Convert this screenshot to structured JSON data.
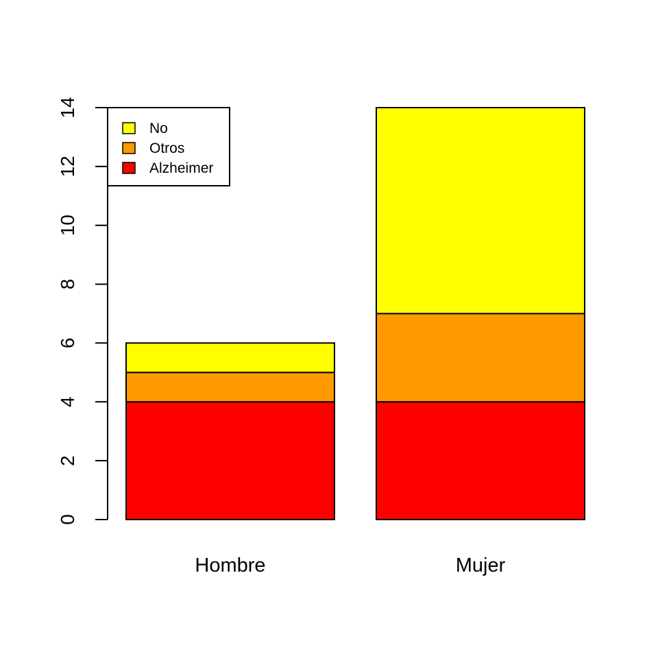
{
  "chart_data": {
    "type": "bar",
    "stacked": true,
    "categories": [
      "Hombre",
      "Mujer"
    ],
    "series": [
      {
        "name": "Alzheimer",
        "values": [
          4,
          4
        ],
        "color": "#ff0000"
      },
      {
        "name": "Otros",
        "values": [
          1,
          3
        ],
        "color": "#ff9900"
      },
      {
        "name": "No",
        "values": [
          1,
          7
        ],
        "color": "#ffff00"
      }
    ],
    "title": "",
    "xlabel": "",
    "ylabel": "",
    "ylim": [
      0,
      14
    ],
    "yticks": [
      "0",
      "2",
      "4",
      "6",
      "8",
      "10",
      "12",
      "14"
    ],
    "grid": false,
    "legend": {
      "position": "top-left",
      "entries": [
        "No",
        "Otros",
        "Alzheimer"
      ]
    }
  }
}
